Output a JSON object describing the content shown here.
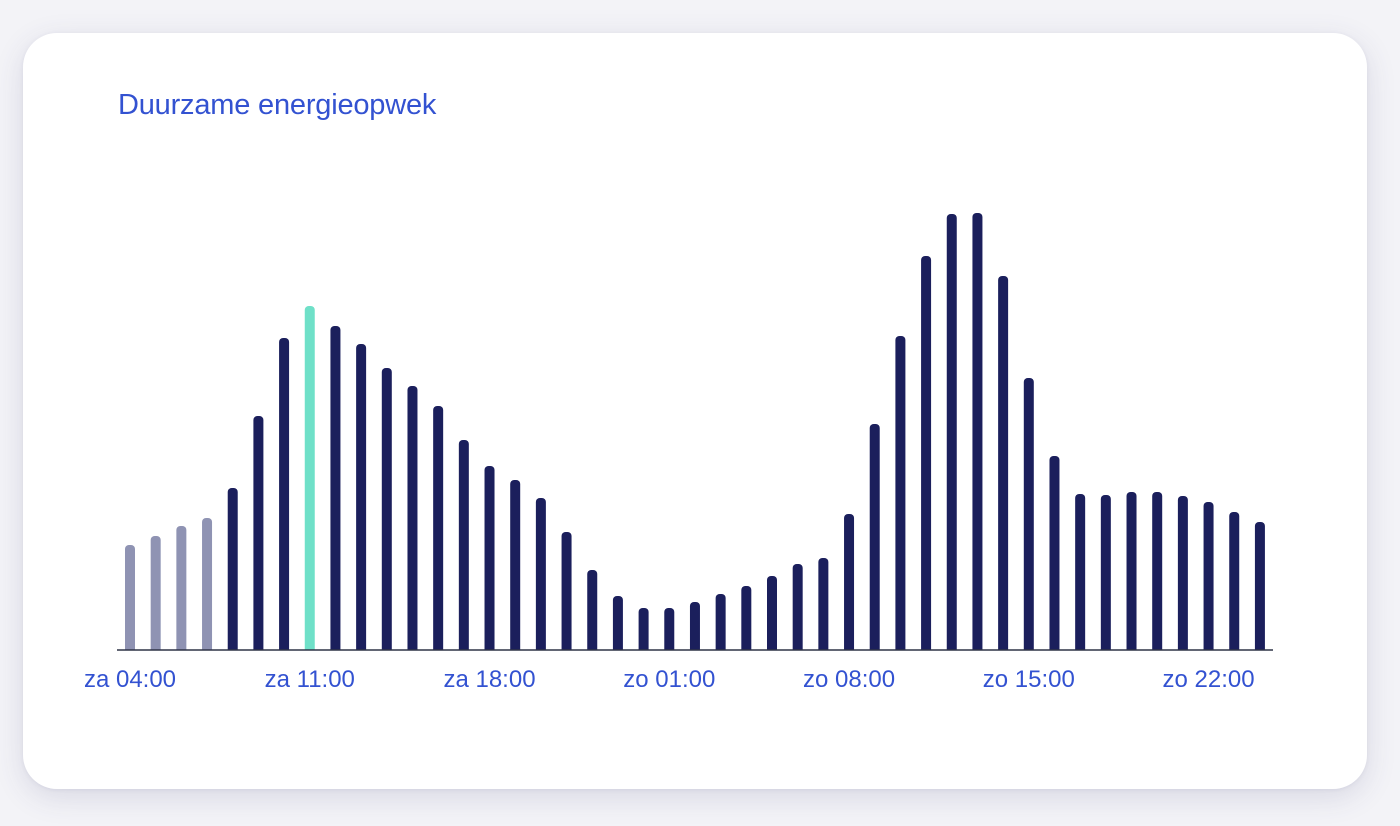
{
  "card": {
    "title": "Duurzame energieopwek"
  },
  "colors": {
    "title": "#3352d1",
    "bar_future": "#1b1f5c",
    "bar_past": "#8f93b3",
    "bar_current": "#6fe0c8",
    "axis": "#2f3347",
    "tick_label": "#3352d1"
  },
  "chart_data": {
    "type": "bar",
    "title": "Duurzame energieopwek",
    "xlabel": "",
    "ylabel": "",
    "ylim": [
      0,
      460
    ],
    "grid": false,
    "legend": "none",
    "x_tick_labels": [
      "za 04:00",
      "za 11:00",
      "za 18:00",
      "zo 01:00",
      "zo 08:00",
      "zo 15:00",
      "zo 22:00"
    ],
    "x_tick_indices": [
      0,
      7,
      14,
      21,
      28,
      35,
      42
    ],
    "current_index": 7,
    "past_until_index": 3,
    "values": [
      105,
      114,
      124,
      132,
      162,
      234,
      312,
      344,
      324,
      306,
      282,
      264,
      244,
      210,
      184,
      170,
      152,
      118,
      80,
      54,
      42,
      42,
      48,
      56,
      64,
      74,
      86,
      92,
      136,
      226,
      314,
      394,
      436,
      437,
      374,
      272,
      194,
      156,
      155,
      158,
      158,
      154,
      148,
      138,
      128
    ]
  }
}
